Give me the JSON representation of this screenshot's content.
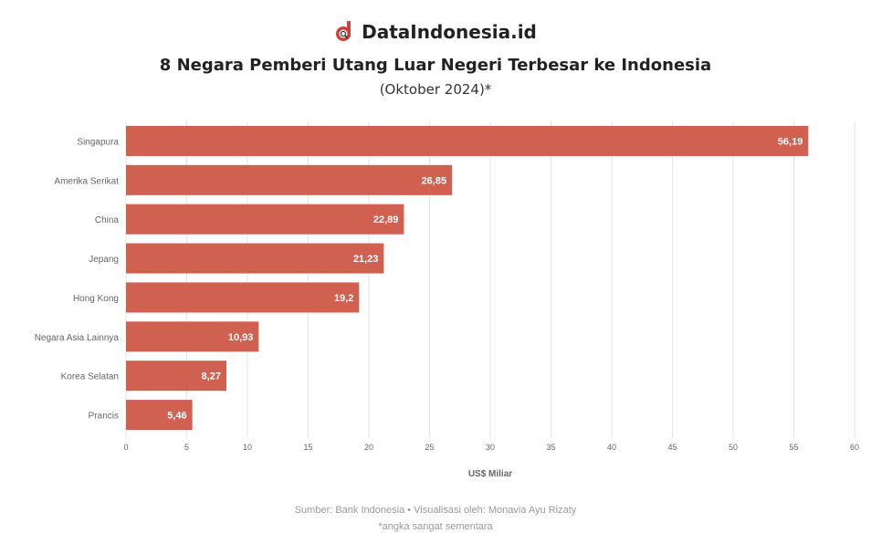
{
  "brand": {
    "name": "DataIndonesia.id",
    "logo_icon": "dataindonesia-logo-icon"
  },
  "chart_data": {
    "type": "bar",
    "orientation": "horizontal",
    "title": "8 Negara Pemberi Utang Luar Negeri Terbesar ke Indonesia",
    "subtitle": "(Oktober 2024)*",
    "categories": [
      "Singapura",
      "Amerika Serikat",
      "China",
      "Jepang",
      "Hong Kong",
      "Negara Asia Lainnya",
      "Korea Selatan",
      "Prancis"
    ],
    "values": [
      56.19,
      26.85,
      22.89,
      21.23,
      19.2,
      10.93,
      8.27,
      5.46
    ],
    "value_labels": [
      "56,19",
      "26,85",
      "22,89",
      "21,23",
      "19,2",
      "10,93",
      "8,27",
      "5,46"
    ],
    "xlabel": "US$ Miliar",
    "ylabel": "",
    "xlim": [
      0,
      60
    ],
    "xticks": [
      0,
      5,
      10,
      15,
      20,
      25,
      30,
      35,
      40,
      45,
      50,
      55,
      60
    ],
    "grid": true,
    "bar_color": "#d0604f"
  },
  "footer": {
    "source": "Sumber: Bank Indonesia • Visualisasi oleh: Monavia Ayu Rizaty",
    "note": "*angka sangat sementara"
  }
}
